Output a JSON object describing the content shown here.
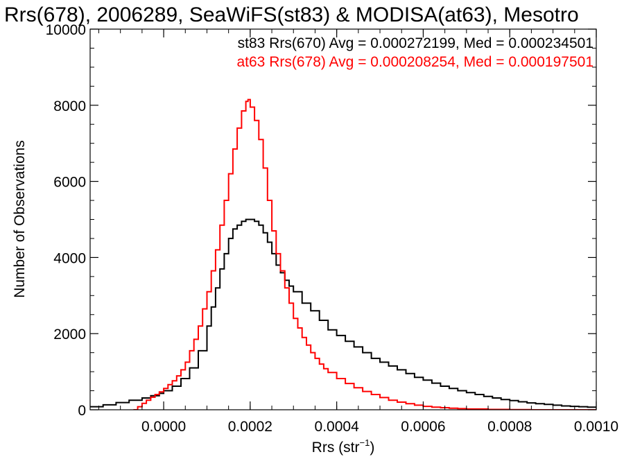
{
  "chart_data": {
    "type": "line",
    "title": "Rrs(678), 2006289, SeaWiFS(st83) & MODISA(at63), Mesotro",
    "xlabel_main": "Rrs (str",
    "xlabel_sup": "−1",
    "xlabel_close": ")",
    "ylabel": "Number of Observations",
    "xlim": [
      -0.00017,
      0.001
    ],
    "ylim": [
      0,
      10000
    ],
    "xticks": [
      {
        "value": 0.0,
        "label": "0.0000"
      },
      {
        "value": 0.0002,
        "label": "0.0002"
      },
      {
        "value": 0.0004,
        "label": "0.0004"
      },
      {
        "value": 0.0006,
        "label": "0.0006"
      },
      {
        "value": 0.0008,
        "label": "0.0008"
      },
      {
        "value": 0.001,
        "label": "0.0010"
      }
    ],
    "yticks": [
      {
        "value": 0,
        "label": "0"
      },
      {
        "value": 2000,
        "label": "2000"
      },
      {
        "value": 4000,
        "label": "4000"
      },
      {
        "value": 6000,
        "label": "6000"
      },
      {
        "value": 8000,
        "label": "8000"
      },
      {
        "value": 10000,
        "label": "10000"
      }
    ],
    "series": [
      {
        "name": "st83",
        "legend": "st83 Rrs(670) Avg = 0.000272199, Med = 0.000234501",
        "color": "#000000",
        "x": [
          -0.00017,
          -0.00014,
          -0.00011,
          -8e-05,
          -5e-05,
          -3e-05,
          -1e-05,
          0.0,
          2e-05,
          4e-05,
          6e-05,
          8e-05,
          0.0001,
          0.00011,
          0.00012,
          0.00013,
          0.00014,
          0.00015,
          0.00016,
          0.00017,
          0.00018,
          0.00019,
          0.0002,
          0.00021,
          0.00022,
          0.00023,
          0.00024,
          0.00025,
          0.00026,
          0.00027,
          0.00028,
          0.00029,
          0.0003,
          0.00032,
          0.00034,
          0.00036,
          0.00038,
          0.0004,
          0.00042,
          0.00044,
          0.00046,
          0.00048,
          0.0005,
          0.00052,
          0.00054,
          0.00056,
          0.00058,
          0.0006,
          0.00062,
          0.00064,
          0.00066,
          0.00068,
          0.0007,
          0.00072,
          0.00074,
          0.00076,
          0.00078,
          0.0008,
          0.00082,
          0.00084,
          0.00086,
          0.00088,
          0.0009,
          0.00092,
          0.00094,
          0.00096,
          0.00098,
          0.001
        ],
        "y": [
          80,
          130,
          190,
          250,
          310,
          370,
          430,
          500,
          620,
          820,
          1100,
          1550,
          2200,
          2700,
          3200,
          3700,
          4100,
          4500,
          4750,
          4850,
          4950,
          5000,
          5000,
          4950,
          4850,
          4650,
          4400,
          4100,
          3800,
          3600,
          3400,
          3250,
          3100,
          2800,
          2600,
          2350,
          2100,
          1950,
          1800,
          1650,
          1500,
          1350,
          1250,
          1150,
          1050,
          950,
          850,
          780,
          700,
          620,
          560,
          500,
          450,
          400,
          350,
          310,
          270,
          240,
          210,
          180,
          160,
          140,
          120,
          100,
          90,
          80,
          70,
          60
        ]
      },
      {
        "name": "at63",
        "legend": "at63 Rrs(678) Avg = 0.000208254, Med = 0.000197501",
        "color": "#ff0000",
        "x": [
          -7e-05,
          -6e-05,
          -5e-05,
          -4e-05,
          -3e-05,
          -2e-05,
          -1e-05,
          0.0,
          1e-05,
          2e-05,
          3e-05,
          4e-05,
          5e-05,
          6e-05,
          7e-05,
          8e-05,
          9e-05,
          0.0001,
          0.00011,
          0.00012,
          0.00013,
          0.00014,
          0.00015,
          0.00016,
          0.00017,
          0.00018,
          0.00019,
          0.000195,
          0.0002,
          0.00021,
          0.00022,
          0.00023,
          0.00024,
          0.00025,
          0.00026,
          0.00027,
          0.00028,
          0.00029,
          0.0003,
          0.00031,
          0.00032,
          0.00033,
          0.00034,
          0.00035,
          0.00036,
          0.00037,
          0.00038,
          0.0004,
          0.00042,
          0.00044,
          0.00046,
          0.00048,
          0.0005,
          0.00052,
          0.00054,
          0.00056,
          0.00058,
          0.0006,
          0.00062,
          0.00064,
          0.00066,
          0.00068,
          0.0007,
          0.00075,
          0.0008,
          0.00085,
          0.0009,
          0.00095,
          0.001
        ],
        "y": [
          0,
          80,
          170,
          250,
          330,
          400,
          470,
          560,
          660,
          760,
          890,
          1050,
          1250,
          1550,
          1850,
          2200,
          2650,
          3100,
          3650,
          4200,
          4850,
          5500,
          6200,
          6850,
          7400,
          7850,
          8100,
          8150,
          7950,
          7600,
          7100,
          6350,
          5500,
          4700,
          4100,
          3650,
          3200,
          2800,
          2400,
          2150,
          1900,
          1700,
          1500,
          1350,
          1200,
          1080,
          980,
          820,
          690,
          580,
          480,
          400,
          320,
          250,
          200,
          160,
          120,
          90,
          70,
          55,
          40,
          30,
          20,
          10,
          5,
          0,
          0,
          0,
          0
        ]
      }
    ],
    "grid": false,
    "legend_position": "top-right"
  }
}
